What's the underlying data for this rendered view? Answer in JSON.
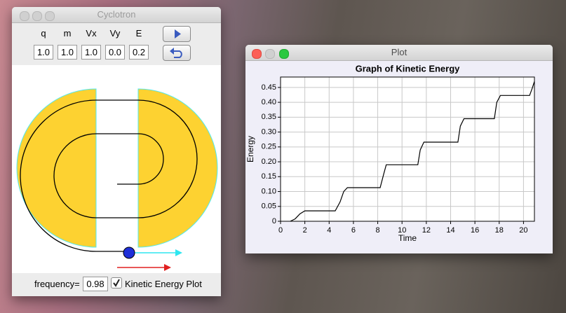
{
  "cyclotron": {
    "title": "Cyclotron",
    "parameters": [
      {
        "label": "q",
        "value": "1.0"
      },
      {
        "label": "m",
        "value": "1.0"
      },
      {
        "label": "Vx",
        "value": "1.0"
      },
      {
        "label": "Vy",
        "value": "0.0"
      },
      {
        "label": "E",
        "value": "0.2"
      }
    ],
    "frequency_label": "frequency=",
    "frequency": "0.98",
    "checkbox_label": "Kinetic Energy Plot"
  },
  "plot_window": {
    "title": "Plot"
  },
  "chart_data": {
    "type": "line",
    "title": "Graph of Kinetic Energy",
    "x_label": "Time",
    "y_label": "Energy",
    "color": "#000000",
    "grid": true,
    "x": [
      0.8,
      1.2,
      1.6,
      2.0,
      4.5,
      4.9,
      5.2,
      5.5,
      8.2,
      8.5,
      8.7,
      11.3,
      11.5,
      11.8,
      14.6,
      14.8,
      15.1,
      17.6,
      17.8,
      18.1,
      20.5,
      20.7,
      20.9
    ],
    "values": [
      0,
      0.008,
      0.025,
      0.035,
      0.035,
      0.065,
      0.1,
      0.113,
      0.113,
      0.16,
      0.19,
      0.19,
      0.24,
      0.266,
      0.266,
      0.32,
      0.345,
      0.345,
      0.4,
      0.423,
      0.423,
      0.445,
      0.47
    ],
    "xlim": [
      0,
      20.9
    ],
    "ylim": [
      0,
      0.485
    ],
    "xticks": [
      0,
      2,
      4,
      6,
      8,
      10,
      12,
      14,
      16,
      18,
      20
    ],
    "yticks": [
      0,
      0.05,
      {
        "value": 0.1,
        "label": "0.10"
      },
      0.15,
      {
        "value": 0.2,
        "label": "0.20"
      },
      0.25,
      {
        "value": 0.3,
        "label": "0.30"
      },
      0.35,
      {
        "value": 0.4,
        "label": "0.40"
      },
      0.45
    ]
  }
}
